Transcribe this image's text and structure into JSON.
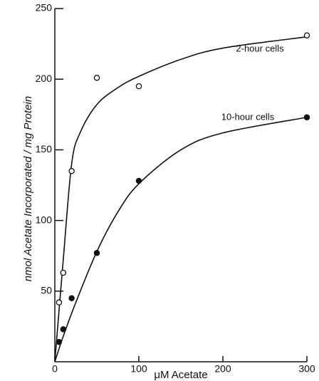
{
  "chart_data": {
    "type": "scatter",
    "x_label": "μM Acetate",
    "y_label": "nmol Acetate Incorporated / mg Protein",
    "xlim": [
      0,
      300
    ],
    "xticks": [
      0,
      100,
      200,
      300
    ],
    "ylim": [
      0,
      250
    ],
    "yticks": [
      50,
      100,
      150,
      200,
      250
    ],
    "series": [
      {
        "name": "2-hour cells",
        "color": "#111111",
        "marker": "open",
        "x": [
          5,
          10,
          20,
          50,
          100,
          300
        ],
        "values": [
          42,
          63,
          135,
          201,
          195,
          231
        ],
        "curve": {
          "x": [
            0,
            10,
            20,
            30,
            50,
            75,
            100,
            150,
            200,
            300
          ],
          "values": [
            0,
            72,
            140,
            162,
            182,
            194,
            202,
            214,
            222,
            230
          ]
        }
      },
      {
        "name": "10-hour cells",
        "color": "#111111",
        "marker": "filled",
        "x": [
          5,
          10,
          20,
          50,
          100,
          300
        ],
        "values": [
          14,
          23,
          45,
          77,
          128,
          173
        ],
        "curve": {
          "x": [
            0,
            10,
            25,
            50,
            75,
            100,
            150,
            200,
            300
          ],
          "values": [
            0,
            18,
            42,
            78,
            106,
            126,
            150,
            162,
            173
          ]
        }
      }
    ]
  }
}
